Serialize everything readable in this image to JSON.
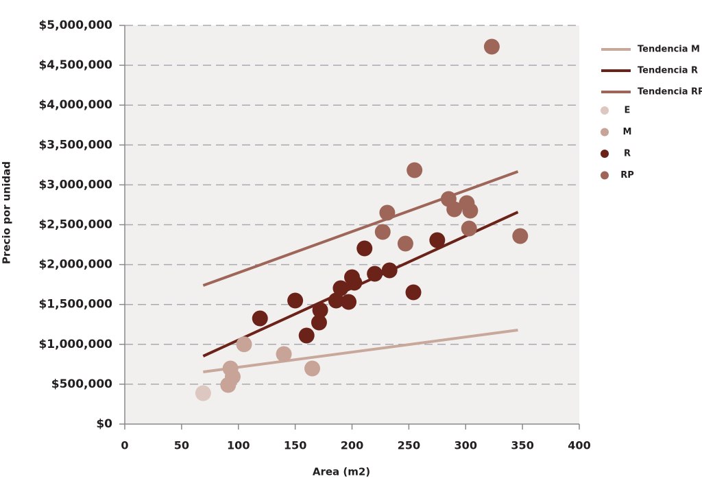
{
  "chart_data": {
    "type": "scatter",
    "xlabel": "Area (m2)",
    "ylabel": "Precio por unidad",
    "xlim": [
      0,
      400
    ],
    "xticks": [
      0,
      50,
      100,
      150,
      200,
      250,
      300,
      350,
      400
    ],
    "ylim": [
      0,
      5000000
    ],
    "yticks": [
      {
        "value": 0,
        "label": "$0"
      },
      {
        "value": 500000,
        "label": "$500,000"
      },
      {
        "value": 1000000,
        "label": "$1,000,000"
      },
      {
        "value": 1500000,
        "label": "$1,500,000"
      },
      {
        "value": 2000000,
        "label": "$2,000,000"
      },
      {
        "value": 2500000,
        "label": "$2,500,000"
      },
      {
        "value": 3000000,
        "label": "$3,000,000"
      },
      {
        "value": 3500000,
        "label": "$3,500,000"
      },
      {
        "value": 4000000,
        "label": "$4,000,000"
      },
      {
        "value": 4500000,
        "label": "$4,500,000"
      },
      {
        "value": 5000000,
        "label": "$5,000,000"
      }
    ],
    "grid": true,
    "legend": "right",
    "series": [
      {
        "name": "Tendencia M",
        "type": "line",
        "color": "#c9a89c",
        "x": [
          69,
          346
        ],
        "values": [
          654000,
          1179000
        ]
      },
      {
        "name": "Tendencia R",
        "type": "line",
        "color": "#6b2218",
        "x": [
          69,
          346
        ],
        "values": [
          852000,
          2659000
        ]
      },
      {
        "name": "Tendencia RP",
        "type": "line",
        "color": "#9e6658",
        "x": [
          69,
          346
        ],
        "values": [
          1738000,
          3167000
        ]
      },
      {
        "name": "E",
        "type": "scatter",
        "color": "#dcc8c0",
        "x": [
          69
        ],
        "values": [
          387000
        ]
      },
      {
        "name": "M",
        "type": "scatter",
        "color": "#c7a497",
        "x": [
          93,
          95,
          91,
          105,
          140,
          165
        ],
        "values": [
          697000,
          594000,
          490000,
          1000000,
          878000,
          697000
        ]
      },
      {
        "name": "R",
        "type": "scatter",
        "color": "#6b2218",
        "x": [
          119,
          150,
          160,
          171,
          172,
          186,
          190,
          197,
          200,
          202,
          211,
          220,
          233,
          254,
          275
        ],
        "values": [
          1325000,
          1549000,
          1110000,
          1274000,
          1429000,
          1549000,
          1704000,
          1532000,
          1842000,
          1773000,
          2203000,
          1885000,
          1928000,
          1652000,
          2306000
        ]
      },
      {
        "name": "RP",
        "type": "scatter",
        "color": "#9e6658",
        "x": [
          231,
          227,
          247,
          255,
          285,
          290,
          301,
          304,
          303,
          348,
          323
        ],
        "values": [
          2651000,
          2410000,
          2263000,
          3184000,
          2823000,
          2694000,
          2771000,
          2676000,
          2453000,
          2358000,
          4733000
        ]
      }
    ]
  }
}
